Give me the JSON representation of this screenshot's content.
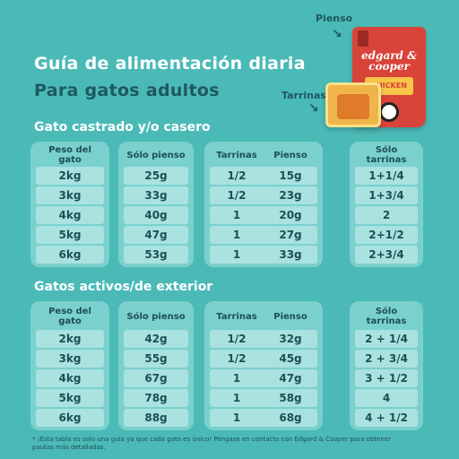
{
  "title_line1": "Guía de alimentación diaria",
  "title_line2": "Para gatos adultos",
  "callouts": {
    "pienso": "Pienso",
    "tarrinas": "Tarrinas"
  },
  "product": {
    "brand": "edgard & cooper",
    "flavor": "CHICKEN"
  },
  "section1": {
    "title": "Gato castrado y/o casero",
    "col1": {
      "header": "Peso del gato",
      "values": [
        "2kg",
        "3kg",
        "4kg",
        "5kg",
        "6kg"
      ]
    },
    "col2": {
      "header": "Sólo pienso",
      "values": [
        "25g",
        "33g",
        "40g",
        "47g",
        "53g"
      ]
    },
    "col3": {
      "header_a": "Tarrinas",
      "header_b": "Pienso",
      "rows": [
        [
          "1/2",
          "15g"
        ],
        [
          "1/2",
          "23g"
        ],
        [
          "1",
          "20g"
        ],
        [
          "1",
          "27g"
        ],
        [
          "1",
          "33g"
        ]
      ]
    },
    "col4": {
      "header": "Sólo tarrinas",
      "values": [
        "1+1/4",
        "1+3/4",
        "2",
        "2+1/2",
        "2+3/4"
      ]
    }
  },
  "section2": {
    "title": "Gatos activos/de exterior",
    "col1": {
      "header": "Peso del gato",
      "values": [
        "2kg",
        "3kg",
        "4kg",
        "5kg",
        "6kg"
      ]
    },
    "col2": {
      "header": "Sólo pienso",
      "values": [
        "42g",
        "55g",
        "67g",
        "78g",
        "88g"
      ]
    },
    "col3": {
      "header_a": "Tarrinas",
      "header_b": "Pienso",
      "rows": [
        [
          "1/2",
          "32g"
        ],
        [
          "1/2",
          "45g"
        ],
        [
          "1",
          "47g"
        ],
        [
          "1",
          "58g"
        ],
        [
          "1",
          "68g"
        ]
      ]
    },
    "col4": {
      "header": "Sólo tarrinas",
      "values": [
        "2 + 1/4",
        "2 + 3/4",
        "3 + 1/2",
        "4",
        "4 + 1/2"
      ]
    }
  },
  "footnote": "* ¡Esta tabla es solo una guía ya que cada gato es único! Póngase en contacto con Edgard & Cooper para obtener pautas más detalladas."
}
